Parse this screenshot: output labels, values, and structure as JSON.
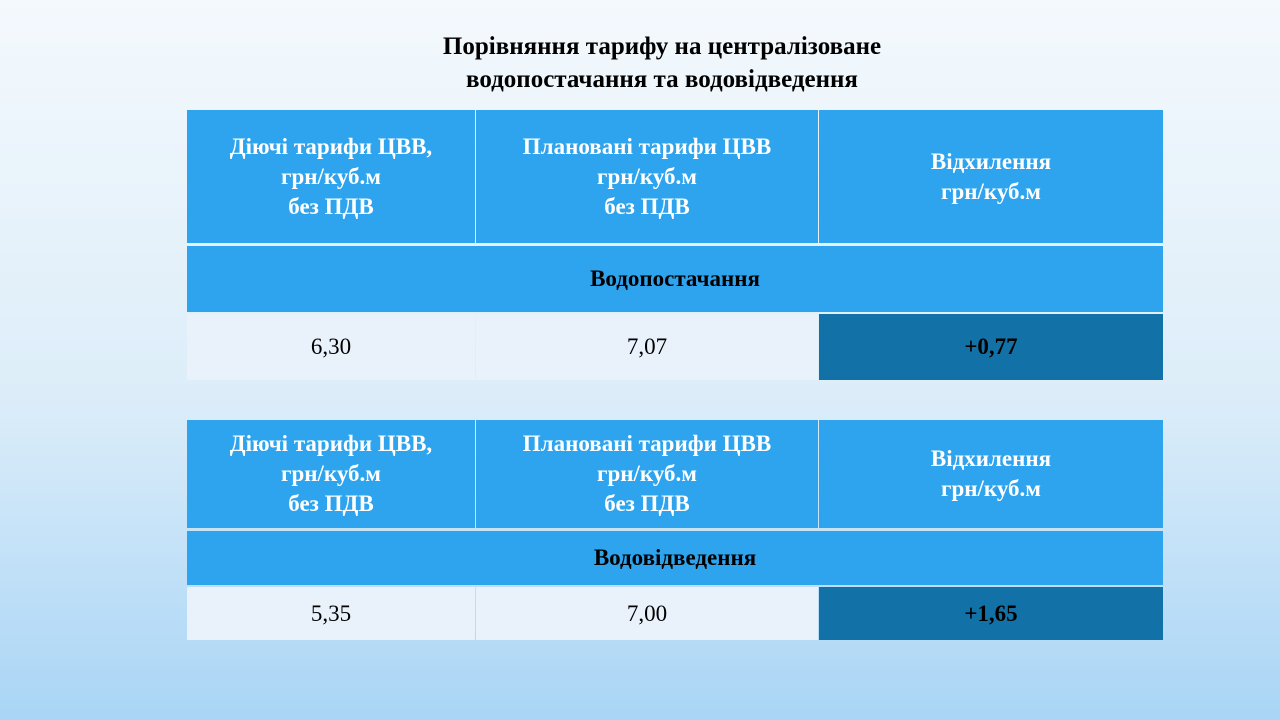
{
  "title": [
    "Порівняння тарифу на централізоване",
    "водопостачання та водовідведення"
  ],
  "tables": [
    {
      "header": [
        [
          "Діючі тарифи ЦВВ,",
          "грн/куб.м",
          "без ПДВ"
        ],
        [
          "Плановані тарифи ЦВВ",
          "грн/куб.м",
          "без ПДВ"
        ],
        [
          "Відхилення",
          "грн/куб.м"
        ]
      ],
      "section": "Водопостачання",
      "row": [
        "6,30",
        "7,07",
        "+0,77"
      ]
    },
    {
      "header": [
        [
          "Діючі тарифи ЦВВ,",
          "грн/куб.м",
          "без ПДВ"
        ],
        [
          "Плановані тарифи ЦВВ",
          "грн/куб.м",
          "без ПДВ"
        ],
        [
          "Відхилення",
          "грн/куб.м"
        ]
      ],
      "section": "Водовідведення",
      "row": [
        "5,35",
        "7,00",
        "+1,65"
      ]
    }
  ]
}
